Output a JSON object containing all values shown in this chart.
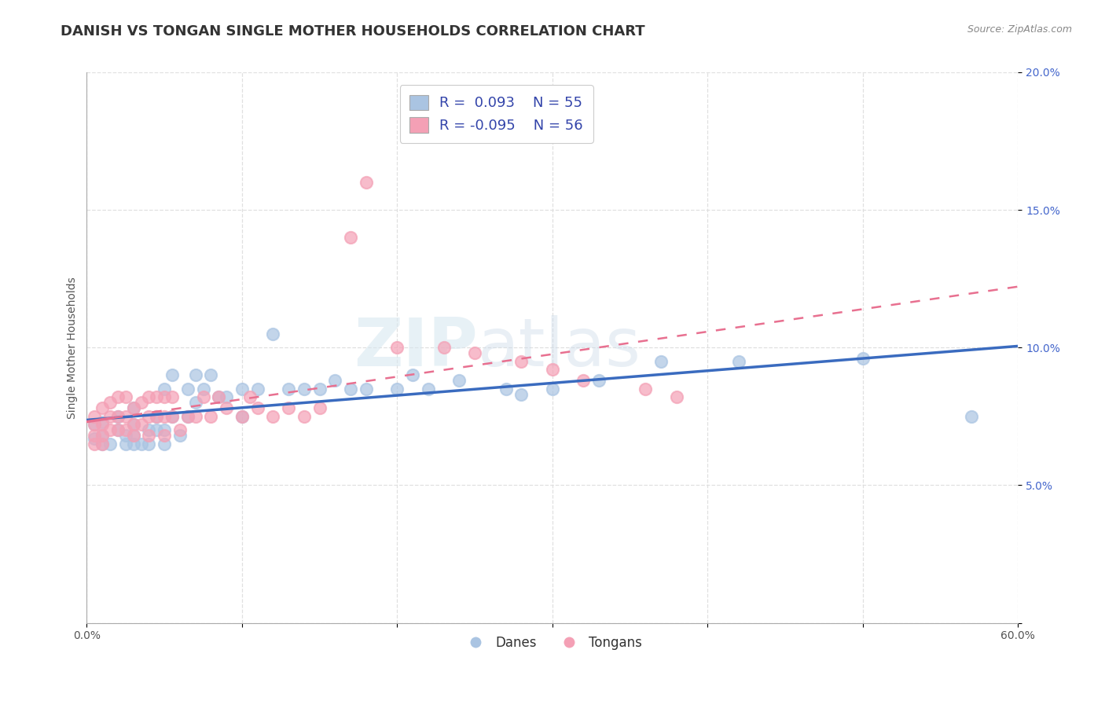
{
  "title": "DANISH VS TONGAN SINGLE MOTHER HOUSEHOLDS CORRELATION CHART",
  "source": "Source: ZipAtlas.com",
  "ylabel": "Single Mother Households",
  "xlim": [
    0.0,
    0.6
  ],
  "ylim": [
    0.0,
    0.2
  ],
  "xticks": [
    0.0,
    0.1,
    0.2,
    0.3,
    0.4,
    0.5,
    0.6
  ],
  "xticklabels": [
    "0.0%",
    "",
    "",
    "",
    "",
    "",
    "60.0%"
  ],
  "yticks": [
    0.0,
    0.05,
    0.1,
    0.15,
    0.2
  ],
  "yticklabels": [
    "",
    "5.0%",
    "10.0%",
    "15.0%",
    "20.0%"
  ],
  "legend_danes": "Danes",
  "legend_tongans": "Tongans",
  "r_danes": 0.093,
  "n_danes": 55,
  "r_tongans": -0.095,
  "n_tongans": 56,
  "danes_color": "#aac4e2",
  "tongans_color": "#f4a0b5",
  "danes_line_color": "#3a6bbf",
  "tongans_line_color": "#e87090",
  "background_color": "#ffffff",
  "grid_color": "#cccccc",
  "watermark_zip": "ZIP",
  "watermark_atlas": "atlas",
  "title_fontsize": 13,
  "axis_label_fontsize": 10,
  "tick_fontsize": 10,
  "danes_x": [
    0.005,
    0.005,
    0.01,
    0.01,
    0.01,
    0.015,
    0.02,
    0.02,
    0.025,
    0.025,
    0.03,
    0.03,
    0.03,
    0.03,
    0.035,
    0.04,
    0.04,
    0.045,
    0.045,
    0.05,
    0.05,
    0.05,
    0.055,
    0.055,
    0.06,
    0.065,
    0.065,
    0.07,
    0.07,
    0.075,
    0.08,
    0.085,
    0.09,
    0.1,
    0.1,
    0.11,
    0.12,
    0.13,
    0.14,
    0.15,
    0.16,
    0.17,
    0.18,
    0.2,
    0.21,
    0.22,
    0.24,
    0.27,
    0.28,
    0.3,
    0.33,
    0.37,
    0.42,
    0.5,
    0.57
  ],
  "danes_y": [
    0.067,
    0.072,
    0.065,
    0.068,
    0.073,
    0.065,
    0.07,
    0.075,
    0.065,
    0.068,
    0.065,
    0.068,
    0.072,
    0.078,
    0.065,
    0.065,
    0.07,
    0.07,
    0.075,
    0.065,
    0.07,
    0.085,
    0.075,
    0.09,
    0.068,
    0.075,
    0.085,
    0.08,
    0.09,
    0.085,
    0.09,
    0.082,
    0.082,
    0.075,
    0.085,
    0.085,
    0.105,
    0.085,
    0.085,
    0.085,
    0.088,
    0.085,
    0.085,
    0.085,
    0.09,
    0.085,
    0.088,
    0.085,
    0.083,
    0.085,
    0.088,
    0.095,
    0.095,
    0.096,
    0.075
  ],
  "tongans_x": [
    0.005,
    0.005,
    0.005,
    0.005,
    0.01,
    0.01,
    0.01,
    0.01,
    0.015,
    0.015,
    0.015,
    0.02,
    0.02,
    0.02,
    0.025,
    0.025,
    0.025,
    0.03,
    0.03,
    0.03,
    0.035,
    0.035,
    0.04,
    0.04,
    0.04,
    0.045,
    0.045,
    0.05,
    0.05,
    0.05,
    0.055,
    0.055,
    0.06,
    0.065,
    0.07,
    0.075,
    0.08,
    0.085,
    0.09,
    0.1,
    0.105,
    0.11,
    0.12,
    0.13,
    0.14,
    0.15,
    0.17,
    0.18,
    0.2,
    0.23,
    0.25,
    0.28,
    0.3,
    0.32,
    0.36,
    0.38
  ],
  "tongans_y": [
    0.065,
    0.068,
    0.072,
    0.075,
    0.065,
    0.068,
    0.072,
    0.078,
    0.07,
    0.075,
    0.08,
    0.07,
    0.075,
    0.082,
    0.07,
    0.075,
    0.082,
    0.068,
    0.072,
    0.078,
    0.072,
    0.08,
    0.068,
    0.075,
    0.082,
    0.075,
    0.082,
    0.068,
    0.075,
    0.082,
    0.075,
    0.082,
    0.07,
    0.075,
    0.075,
    0.082,
    0.075,
    0.082,
    0.078,
    0.075,
    0.082,
    0.078,
    0.075,
    0.078,
    0.075,
    0.078,
    0.14,
    0.16,
    0.1,
    0.1,
    0.098,
    0.095,
    0.092,
    0.088,
    0.085,
    0.082
  ]
}
